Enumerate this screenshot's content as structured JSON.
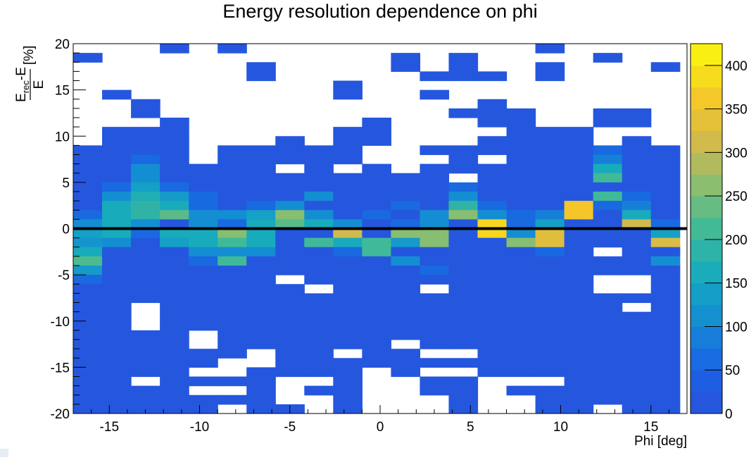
{
  "chart_data": {
    "type": "heatmap",
    "title": "Energy resolution dependence on phi",
    "xlabel": "Phi [deg]",
    "ylabel": {
      "numerator": "E",
      "numerator_sub": "rec",
      "numerator_rest": "-E",
      "denominator": "E",
      "unit": "[%]"
    },
    "xlim": [
      -17,
      17
    ],
    "ylim": [
      -20,
      20
    ],
    "x_bin_width": 1.6,
    "y_bin_width": 1.0,
    "x_ticks": [
      -15,
      -10,
      -5,
      0,
      5,
      10,
      15
    ],
    "x_tick_labels": [
      "-15",
      "-10",
      "-5",
      "0",
      "5",
      "10",
      "15"
    ],
    "y_ticks": [
      20,
      15,
      10,
      5,
      0,
      -5,
      -10,
      -15,
      -20
    ],
    "y_tick_labels": [
      "20",
      "15",
      "10",
      "5",
      "0",
      "-5",
      "-10",
      "-15",
      "-20"
    ],
    "colorbar": {
      "min": 0,
      "max": 425,
      "ticks": [
        0,
        50,
        100,
        150,
        200,
        250,
        300,
        350,
        400
      ],
      "tick_labels": [
        "0",
        "50",
        "100",
        "150",
        "200",
        "250",
        "300",
        "350",
        "400"
      ]
    },
    "reference_line_y": 0,
    "grid": false,
    "legend": "none",
    "x_bins": [
      -16.2,
      -14.6,
      -13.0,
      -11.4,
      -9.8,
      -8.2,
      -6.6,
      -5.0,
      -3.4,
      -1.8,
      -0.2,
      1.4,
      3.0,
      4.6,
      6.2,
      7.8,
      9.4,
      11.0,
      12.6,
      14.2,
      15.8
    ],
    "y_bins": [
      19.5,
      18.5,
      17.5,
      16.5,
      15.5,
      14.5,
      13.5,
      12.5,
      11.5,
      10.5,
      9.5,
      8.5,
      7.5,
      6.5,
      5.5,
      4.5,
      3.5,
      2.5,
      1.5,
      0.5,
      -0.5,
      -1.5,
      -2.5,
      -3.5,
      -4.5,
      -5.5,
      -6.5,
      -7.5,
      -8.5,
      -9.5,
      -10.5,
      -11.5,
      -12.5,
      -13.5,
      -14.5,
      -15.5,
      -16.5,
      -17.5,
      -18.5,
      -19.5
    ],
    "z": [
      [
        0,
        0,
        0,
        10,
        0,
        10,
        0,
        0,
        0,
        0,
        0,
        0,
        0,
        0,
        0,
        0,
        10,
        0,
        0,
        0,
        0
      ],
      [
        10,
        0,
        0,
        0,
        0,
        0,
        0,
        0,
        0,
        0,
        0,
        10,
        0,
        10,
        0,
        0,
        0,
        0,
        10,
        0,
        0
      ],
      [
        0,
        0,
        0,
        0,
        0,
        0,
        10,
        0,
        0,
        0,
        0,
        10,
        0,
        10,
        0,
        0,
        10,
        0,
        0,
        0,
        10
      ],
      [
        0,
        0,
        0,
        0,
        0,
        0,
        10,
        0,
        0,
        0,
        0,
        0,
        10,
        10,
        10,
        0,
        10,
        0,
        0,
        0,
        0
      ],
      [
        0,
        0,
        0,
        0,
        0,
        0,
        0,
        0,
        0,
        10,
        0,
        0,
        0,
        0,
        0,
        0,
        0,
        0,
        0,
        0,
        0
      ],
      [
        0,
        10,
        0,
        0,
        0,
        0,
        0,
        0,
        0,
        10,
        0,
        0,
        10,
        0,
        0,
        0,
        0,
        0,
        0,
        0,
        0
      ],
      [
        0,
        0,
        10,
        0,
        0,
        0,
        0,
        0,
        0,
        0,
        0,
        0,
        0,
        0,
        10,
        0,
        0,
        0,
        0,
        0,
        0
      ],
      [
        0,
        0,
        10,
        0,
        0,
        0,
        0,
        0,
        0,
        0,
        0,
        0,
        0,
        10,
        10,
        10,
        0,
        0,
        10,
        10,
        0
      ],
      [
        0,
        0,
        0,
        10,
        0,
        0,
        0,
        0,
        0,
        0,
        10,
        0,
        0,
        0,
        10,
        10,
        0,
        0,
        10,
        10,
        0
      ],
      [
        0,
        10,
        10,
        10,
        0,
        0,
        0,
        0,
        0,
        10,
        10,
        0,
        0,
        0,
        0,
        10,
        10,
        10,
        0,
        0,
        0
      ],
      [
        0,
        10,
        10,
        10,
        0,
        0,
        0,
        10,
        0,
        10,
        10,
        0,
        0,
        0,
        10,
        10,
        10,
        10,
        0,
        10,
        0
      ],
      [
        10,
        10,
        15,
        10,
        0,
        10,
        10,
        10,
        10,
        10,
        0,
        0,
        10,
        10,
        10,
        10,
        10,
        10,
        60,
        10,
        10
      ],
      [
        10,
        10,
        60,
        10,
        0,
        10,
        10,
        10,
        10,
        10,
        0,
        0,
        0,
        10,
        0,
        10,
        10,
        10,
        90,
        10,
        10
      ],
      [
        10,
        10,
        110,
        10,
        10,
        10,
        10,
        0,
        10,
        0,
        10,
        0,
        10,
        10,
        10,
        10,
        10,
        10,
        160,
        10,
        10
      ],
      [
        10,
        10,
        110,
        10,
        10,
        10,
        10,
        10,
        10,
        10,
        10,
        10,
        10,
        0,
        10,
        10,
        10,
        10,
        210,
        10,
        10
      ],
      [
        10,
        60,
        140,
        60,
        10,
        10,
        10,
        10,
        10,
        10,
        10,
        10,
        10,
        60,
        10,
        10,
        10,
        10,
        10,
        10,
        10
      ],
      [
        10,
        110,
        170,
        130,
        60,
        10,
        10,
        10,
        110,
        10,
        10,
        10,
        10,
        110,
        10,
        10,
        10,
        10,
        210,
        60,
        10
      ],
      [
        10,
        160,
        190,
        160,
        60,
        10,
        60,
        110,
        10,
        10,
        10,
        60,
        10,
        190,
        60,
        10,
        10,
        360,
        60,
        90,
        10
      ],
      [
        60,
        160,
        190,
        230,
        110,
        110,
        140,
        260,
        110,
        10,
        60,
        10,
        110,
        260,
        110,
        60,
        90,
        360,
        10,
        160,
        10
      ],
      [
        110,
        160,
        110,
        10,
        110,
        60,
        160,
        230,
        160,
        110,
        10,
        60,
        110,
        10,
        380,
        60,
        140,
        10,
        10,
        310,
        60
      ],
      [
        140,
        160,
        60,
        160,
        160,
        260,
        160,
        10,
        10,
        310,
        10,
        260,
        260,
        10,
        380,
        110,
        330,
        10,
        10,
        10,
        140
      ],
      [
        120,
        110,
        10,
        140,
        160,
        210,
        160,
        10,
        210,
        160,
        210,
        130,
        260,
        10,
        10,
        260,
        330,
        10,
        10,
        10,
        320
      ],
      [
        160,
        10,
        10,
        10,
        110,
        110,
        110,
        10,
        10,
        60,
        210,
        10,
        10,
        10,
        10,
        10,
        60,
        10,
        0,
        10,
        10
      ],
      [
        220,
        10,
        10,
        10,
        60,
        210,
        10,
        10,
        10,
        10,
        10,
        110,
        10,
        10,
        10,
        10,
        10,
        10,
        10,
        10,
        110
      ],
      [
        130,
        10,
        10,
        10,
        10,
        10,
        10,
        10,
        10,
        10,
        10,
        10,
        60,
        10,
        10,
        10,
        10,
        10,
        10,
        10,
        10
      ],
      [
        60,
        10,
        10,
        10,
        10,
        10,
        10,
        0,
        10,
        10,
        10,
        10,
        10,
        10,
        10,
        10,
        10,
        10,
        0,
        0,
        10
      ],
      [
        10,
        10,
        10,
        10,
        10,
        10,
        10,
        10,
        0,
        10,
        10,
        10,
        0,
        10,
        10,
        10,
        10,
        10,
        0,
        0,
        10
      ],
      [
        10,
        10,
        10,
        10,
        10,
        10,
        10,
        10,
        10,
        10,
        10,
        10,
        10,
        10,
        10,
        10,
        10,
        10,
        10,
        10,
        10
      ],
      [
        10,
        10,
        0,
        10,
        10,
        10,
        10,
        10,
        10,
        10,
        10,
        10,
        10,
        10,
        10,
        10,
        10,
        10,
        10,
        0,
        10
      ],
      [
        10,
        10,
        0,
        10,
        10,
        10,
        10,
        10,
        10,
        10,
        10,
        10,
        10,
        10,
        10,
        10,
        10,
        10,
        10,
        10,
        10
      ],
      [
        10,
        10,
        0,
        10,
        10,
        10,
        10,
        10,
        10,
        10,
        10,
        10,
        10,
        10,
        10,
        10,
        10,
        10,
        10,
        10,
        10
      ],
      [
        10,
        10,
        10,
        10,
        0,
        10,
        10,
        10,
        10,
        10,
        10,
        10,
        10,
        10,
        10,
        10,
        10,
        10,
        10,
        10,
        10
      ],
      [
        10,
        10,
        10,
        10,
        0,
        10,
        10,
        10,
        10,
        10,
        10,
        0,
        10,
        10,
        10,
        10,
        10,
        10,
        10,
        10,
        10
      ],
      [
        10,
        10,
        10,
        10,
        10,
        10,
        0,
        10,
        10,
        0,
        10,
        10,
        0,
        0,
        10,
        10,
        10,
        10,
        10,
        10,
        10
      ],
      [
        10,
        10,
        10,
        10,
        10,
        0,
        0,
        10,
        10,
        10,
        10,
        10,
        10,
        10,
        10,
        10,
        10,
        10,
        10,
        10,
        10
      ],
      [
        10,
        10,
        10,
        10,
        0,
        0,
        10,
        10,
        10,
        10,
        0,
        10,
        0,
        0,
        10,
        10,
        10,
        10,
        10,
        10,
        10
      ],
      [
        10,
        10,
        0,
        10,
        10,
        10,
        10,
        0,
        0,
        10,
        0,
        0,
        10,
        10,
        0,
        0,
        0,
        10,
        10,
        10,
        10
      ],
      [
        10,
        10,
        10,
        10,
        0,
        0,
        10,
        0,
        10,
        10,
        0,
        0,
        10,
        10,
        0,
        10,
        10,
        10,
        10,
        10,
        10
      ],
      [
        10,
        10,
        10,
        10,
        10,
        10,
        10,
        0,
        0,
        10,
        0,
        0,
        0,
        10,
        0,
        0,
        10,
        10,
        10,
        10,
        10
      ],
      [
        10,
        10,
        10,
        10,
        10,
        0,
        10,
        10,
        0,
        10,
        0,
        0,
        0,
        10,
        0,
        0,
        10,
        10,
        0,
        10,
        10
      ]
    ]
  }
}
